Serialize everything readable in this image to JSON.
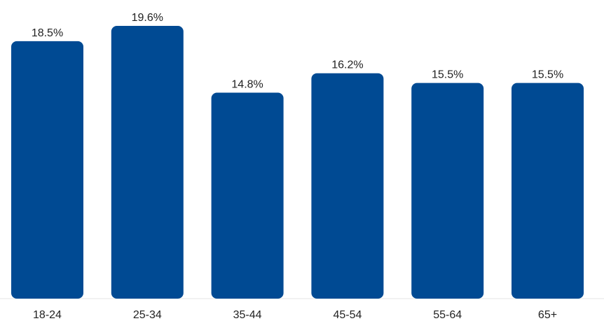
{
  "chart_data": {
    "type": "bar",
    "categories": [
      "18-24",
      "25-34",
      "35-44",
      "45-54",
      "55-64",
      "65+"
    ],
    "values": [
      18.5,
      19.6,
      14.8,
      16.2,
      15.5,
      15.5
    ],
    "value_labels": [
      "18.5%",
      "19.6%",
      "14.8%",
      "16.2%",
      "15.5%",
      "15.5%"
    ],
    "title": "",
    "xlabel": "",
    "ylabel": "",
    "ylim": [
      0,
      19.6
    ],
    "grid": false,
    "legend": "none",
    "bar_color": "#004a93"
  }
}
